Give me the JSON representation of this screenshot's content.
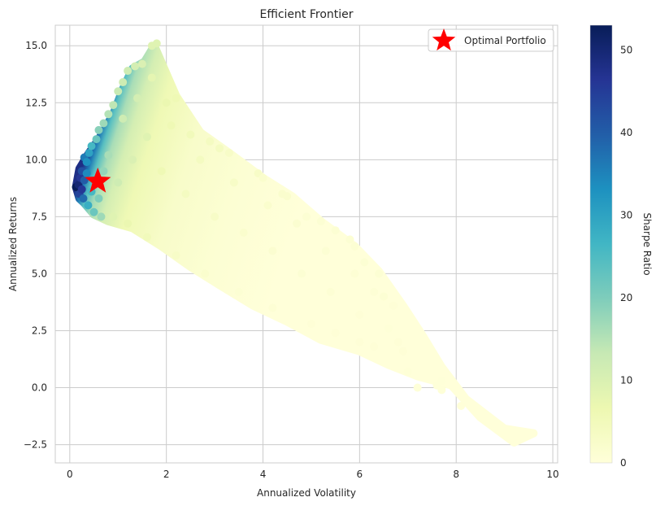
{
  "chart_data": {
    "type": "scatter",
    "title": "Efficient Frontier",
    "xlabel": "Annualized Volatility",
    "ylabel": "Annualized Returns",
    "xlim": [
      -0.3,
      10.1
    ],
    "ylim": [
      -3.3,
      15.9
    ],
    "x_ticks": [
      0,
      2,
      4,
      6,
      8,
      10
    ],
    "x_tick_labels": [
      "0",
      "2",
      "4",
      "6",
      "8",
      "10"
    ],
    "y_ticks": [
      -2.5,
      0.0,
      2.5,
      5.0,
      7.5,
      10.0,
      12.5,
      15.0
    ],
    "y_tick_labels": [
      "−2.5",
      "0.0",
      "2.5",
      "5.0",
      "7.5",
      "10.0",
      "12.5",
      "15.0"
    ],
    "grid": true,
    "colormap": "YlGnBu",
    "colorbar": {
      "label": "Sharpe Ratio",
      "range": [
        0,
        53
      ],
      "ticks": [
        0,
        10,
        20,
        30,
        40,
        50
      ],
      "tick_labels": [
        "0",
        "10",
        "20",
        "30",
        "40",
        "50"
      ],
      "colors": [
        "#ffffd9",
        "#edf8b1",
        "#c7e9b4",
        "#7fcdbb",
        "#41b6c4",
        "#1d91c0",
        "#225ea8",
        "#253494",
        "#081d58"
      ]
    },
    "optimal_portfolio": {
      "x": 0.58,
      "y": 9.05,
      "color": "#ff0000",
      "marker": "star"
    },
    "legend": {
      "position": "top-right",
      "entries": [
        "Optimal Portfolio"
      ]
    },
    "envelope_upper": [
      [
        0.13,
        8.8
      ],
      [
        0.2,
        9.6
      ],
      [
        0.4,
        10.3
      ],
      [
        0.6,
        10.9
      ],
      [
        0.9,
        12.0
      ],
      [
        1.1,
        13.1
      ],
      [
        1.3,
        14.0
      ],
      [
        1.55,
        14.3
      ],
      [
        1.75,
        15.0
      ],
      [
        2.2,
        12.8
      ],
      [
        2.7,
        11.2
      ],
      [
        3.3,
        10.3
      ],
      [
        4.0,
        9.2
      ],
      [
        4.6,
        8.4
      ],
      [
        5.2,
        7.3
      ],
      [
        5.9,
        6.2
      ],
      [
        6.4,
        5.1
      ],
      [
        6.9,
        3.6
      ],
      [
        7.3,
        2.3
      ],
      [
        7.7,
        0.9
      ],
      [
        8.2,
        -0.5
      ],
      [
        9.0,
        -1.8
      ],
      [
        9.6,
        -2.0
      ]
    ],
    "envelope_lower": [
      [
        9.6,
        -2.0
      ],
      [
        9.2,
        -2.4
      ],
      [
        8.5,
        -1.3
      ],
      [
        7.9,
        0.1
      ],
      [
        7.2,
        0.5
      ],
      [
        6.6,
        1.0
      ],
      [
        6.0,
        1.6
      ],
      [
        5.2,
        2.1
      ],
      [
        4.5,
        2.9
      ],
      [
        3.8,
        3.6
      ],
      [
        3.1,
        4.5
      ],
      [
        2.5,
        5.3
      ],
      [
        1.9,
        6.2
      ],
      [
        1.3,
        7.0
      ],
      [
        0.8,
        7.3
      ],
      [
        0.5,
        7.6
      ],
      [
        0.3,
        8.1
      ],
      [
        0.2,
        8.3
      ],
      [
        0.13,
        8.8
      ]
    ],
    "samples": [
      [
        0.13,
        8.8,
        53
      ],
      [
        0.18,
        8.9,
        50
      ],
      [
        0.2,
        8.5,
        44
      ],
      [
        0.22,
        9.2,
        46
      ],
      [
        0.25,
        9.5,
        42
      ],
      [
        0.3,
        10.1,
        36
      ],
      [
        0.28,
        8.3,
        38
      ],
      [
        0.35,
        9.9,
        33
      ],
      [
        0.4,
        10.3,
        30
      ],
      [
        0.38,
        8.0,
        28
      ],
      [
        0.45,
        10.6,
        26
      ],
      [
        0.5,
        7.7,
        22
      ],
      [
        0.55,
        10.9,
        22
      ],
      [
        0.6,
        11.3,
        19
      ],
      [
        0.65,
        7.5,
        17
      ],
      [
        0.7,
        11.6,
        17
      ],
      [
        0.8,
        12.0,
        15
      ],
      [
        0.9,
        12.4,
        14
      ],
      [
        1.0,
        13.0,
        13
      ],
      [
        1.1,
        13.4,
        12
      ],
      [
        1.2,
        13.9,
        12
      ],
      [
        1.35,
        14.1,
        11
      ],
      [
        1.5,
        14.2,
        10
      ],
      [
        1.7,
        15.0,
        9
      ],
      [
        1.8,
        15.1,
        9
      ],
      [
        1.7,
        13.6,
        8
      ],
      [
        2.0,
        12.5,
        7
      ],
      [
        2.2,
        12.7,
        6
      ],
      [
        2.1,
        11.5,
        6
      ],
      [
        2.5,
        11.1,
        5
      ],
      [
        2.9,
        10.8,
        4
      ],
      [
        3.1,
        10.5,
        4
      ],
      [
        3.3,
        10.3,
        3
      ],
      [
        3.9,
        9.4,
        3
      ],
      [
        4.0,
        9.2,
        2
      ],
      [
        4.4,
        8.5,
        2
      ],
      [
        4.5,
        8.4,
        2
      ],
      [
        4.9,
        7.5,
        1
      ],
      [
        5.2,
        7.3,
        1
      ],
      [
        5.5,
        6.9,
        1
      ],
      [
        5.8,
        6.5,
        1
      ],
      [
        5.9,
        6.2,
        1
      ],
      [
        6.1,
        5.5,
        1
      ],
      [
        6.4,
        5.0,
        1
      ],
      [
        6.5,
        4.0,
        1
      ],
      [
        6.7,
        3.6,
        0.5
      ],
      [
        6.8,
        2.0,
        0.5
      ],
      [
        6.9,
        1.6,
        0.5
      ],
      [
        7.0,
        0.7,
        0.3
      ],
      [
        7.2,
        0.0,
        0.2
      ],
      [
        7.6,
        0.1,
        0.2
      ],
      [
        7.7,
        0.3,
        0.2
      ],
      [
        7.7,
        -0.1,
        0.2
      ],
      [
        8.1,
        -0.8,
        0.1
      ],
      [
        9.2,
        -2.4,
        0.0
      ],
      [
        9.6,
        -2.0,
        0.0
      ],
      [
        5.0,
        2.8,
        0.5
      ],
      [
        5.5,
        2.4,
        0.5
      ],
      [
        6.0,
        2.0,
        0.5
      ],
      [
        6.3,
        1.8,
        0.5
      ],
      [
        4.2,
        3.5,
        0.8
      ],
      [
        3.5,
        4.2,
        1
      ],
      [
        2.8,
        5.0,
        2
      ],
      [
        2.2,
        5.8,
        3
      ],
      [
        1.6,
        6.6,
        5
      ],
      [
        1.2,
        7.2,
        7
      ],
      [
        0.9,
        7.5,
        9
      ],
      [
        1.0,
        9.0,
        12
      ],
      [
        1.3,
        10.0,
        10
      ],
      [
        1.6,
        11.0,
        9
      ],
      [
        1.9,
        9.5,
        6
      ],
      [
        2.4,
        8.5,
        4
      ],
      [
        3.0,
        7.5,
        3
      ],
      [
        3.6,
        6.8,
        2
      ],
      [
        4.2,
        6.0,
        1.5
      ],
      [
        4.8,
        5.0,
        1
      ],
      [
        5.4,
        4.2,
        0.8
      ],
      [
        6.0,
        3.2,
        0.5
      ],
      [
        6.6,
        2.6,
        0.4
      ],
      [
        2.7,
        10.0,
        4
      ],
      [
        3.4,
        9.0,
        3
      ],
      [
        4.1,
        8.0,
        2
      ],
      [
        4.7,
        7.2,
        1.5
      ],
      [
        5.3,
        6.0,
        1
      ],
      [
        5.9,
        5.0,
        0.8
      ],
      [
        6.3,
        4.2,
        0.6
      ],
      [
        0.7,
        9.5,
        18
      ],
      [
        0.5,
        9.0,
        24
      ],
      [
        0.45,
        8.6,
        26
      ],
      [
        0.3,
        9.1,
        40
      ],
      [
        0.25,
        8.7,
        46
      ],
      [
        0.35,
        9.4,
        34
      ],
      [
        0.6,
        8.3,
        20
      ],
      [
        0.8,
        10.2,
        16
      ],
      [
        1.1,
        11.8,
        12
      ],
      [
        1.4,
        12.7,
        11
      ]
    ]
  }
}
